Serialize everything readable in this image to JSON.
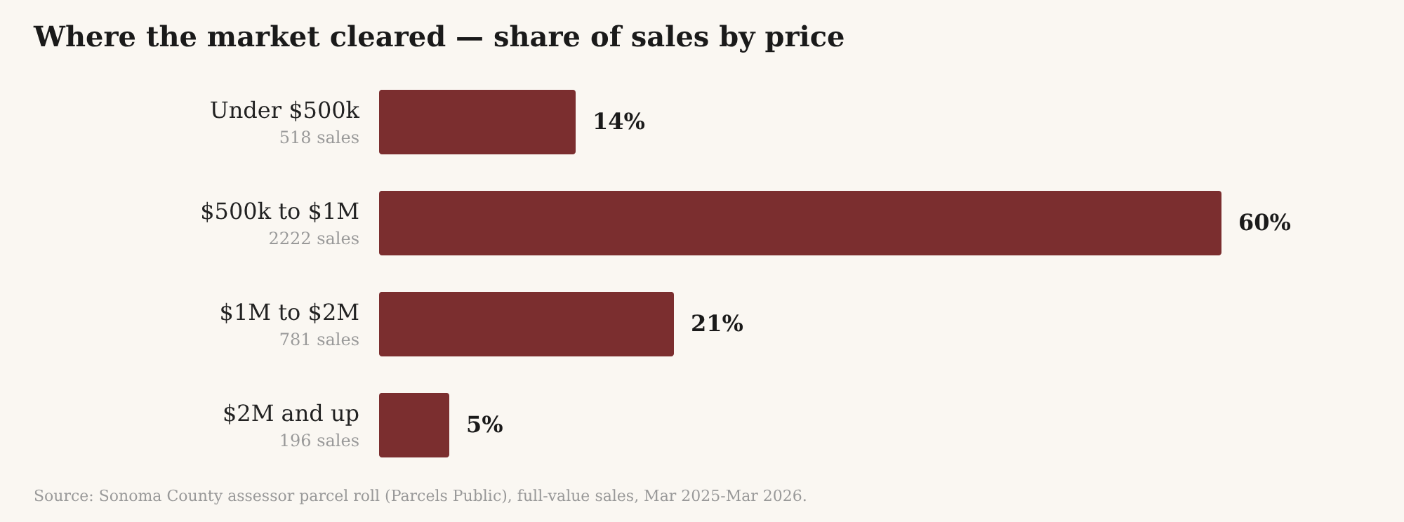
{
  "chart_data": {
    "type": "bar",
    "orientation": "horizontal",
    "title": "Where the market cleared — share of sales by price",
    "categories": [
      "Under $500k",
      "$500k to $1M",
      "$1M to $2M",
      "$2M and up"
    ],
    "values": [
      14,
      60,
      21,
      5
    ],
    "value_labels": [
      "14%",
      "60%",
      "21%",
      "5%"
    ],
    "color": "#7b2e2f",
    "annotations": [
      "518 sales",
      "2222 sales",
      "781 sales",
      "196 sales",
      "Source: Sonoma County assessor parcel roll (Parcels Public), full-value sales, Mar 2025-Mar 2026."
    ]
  }
}
